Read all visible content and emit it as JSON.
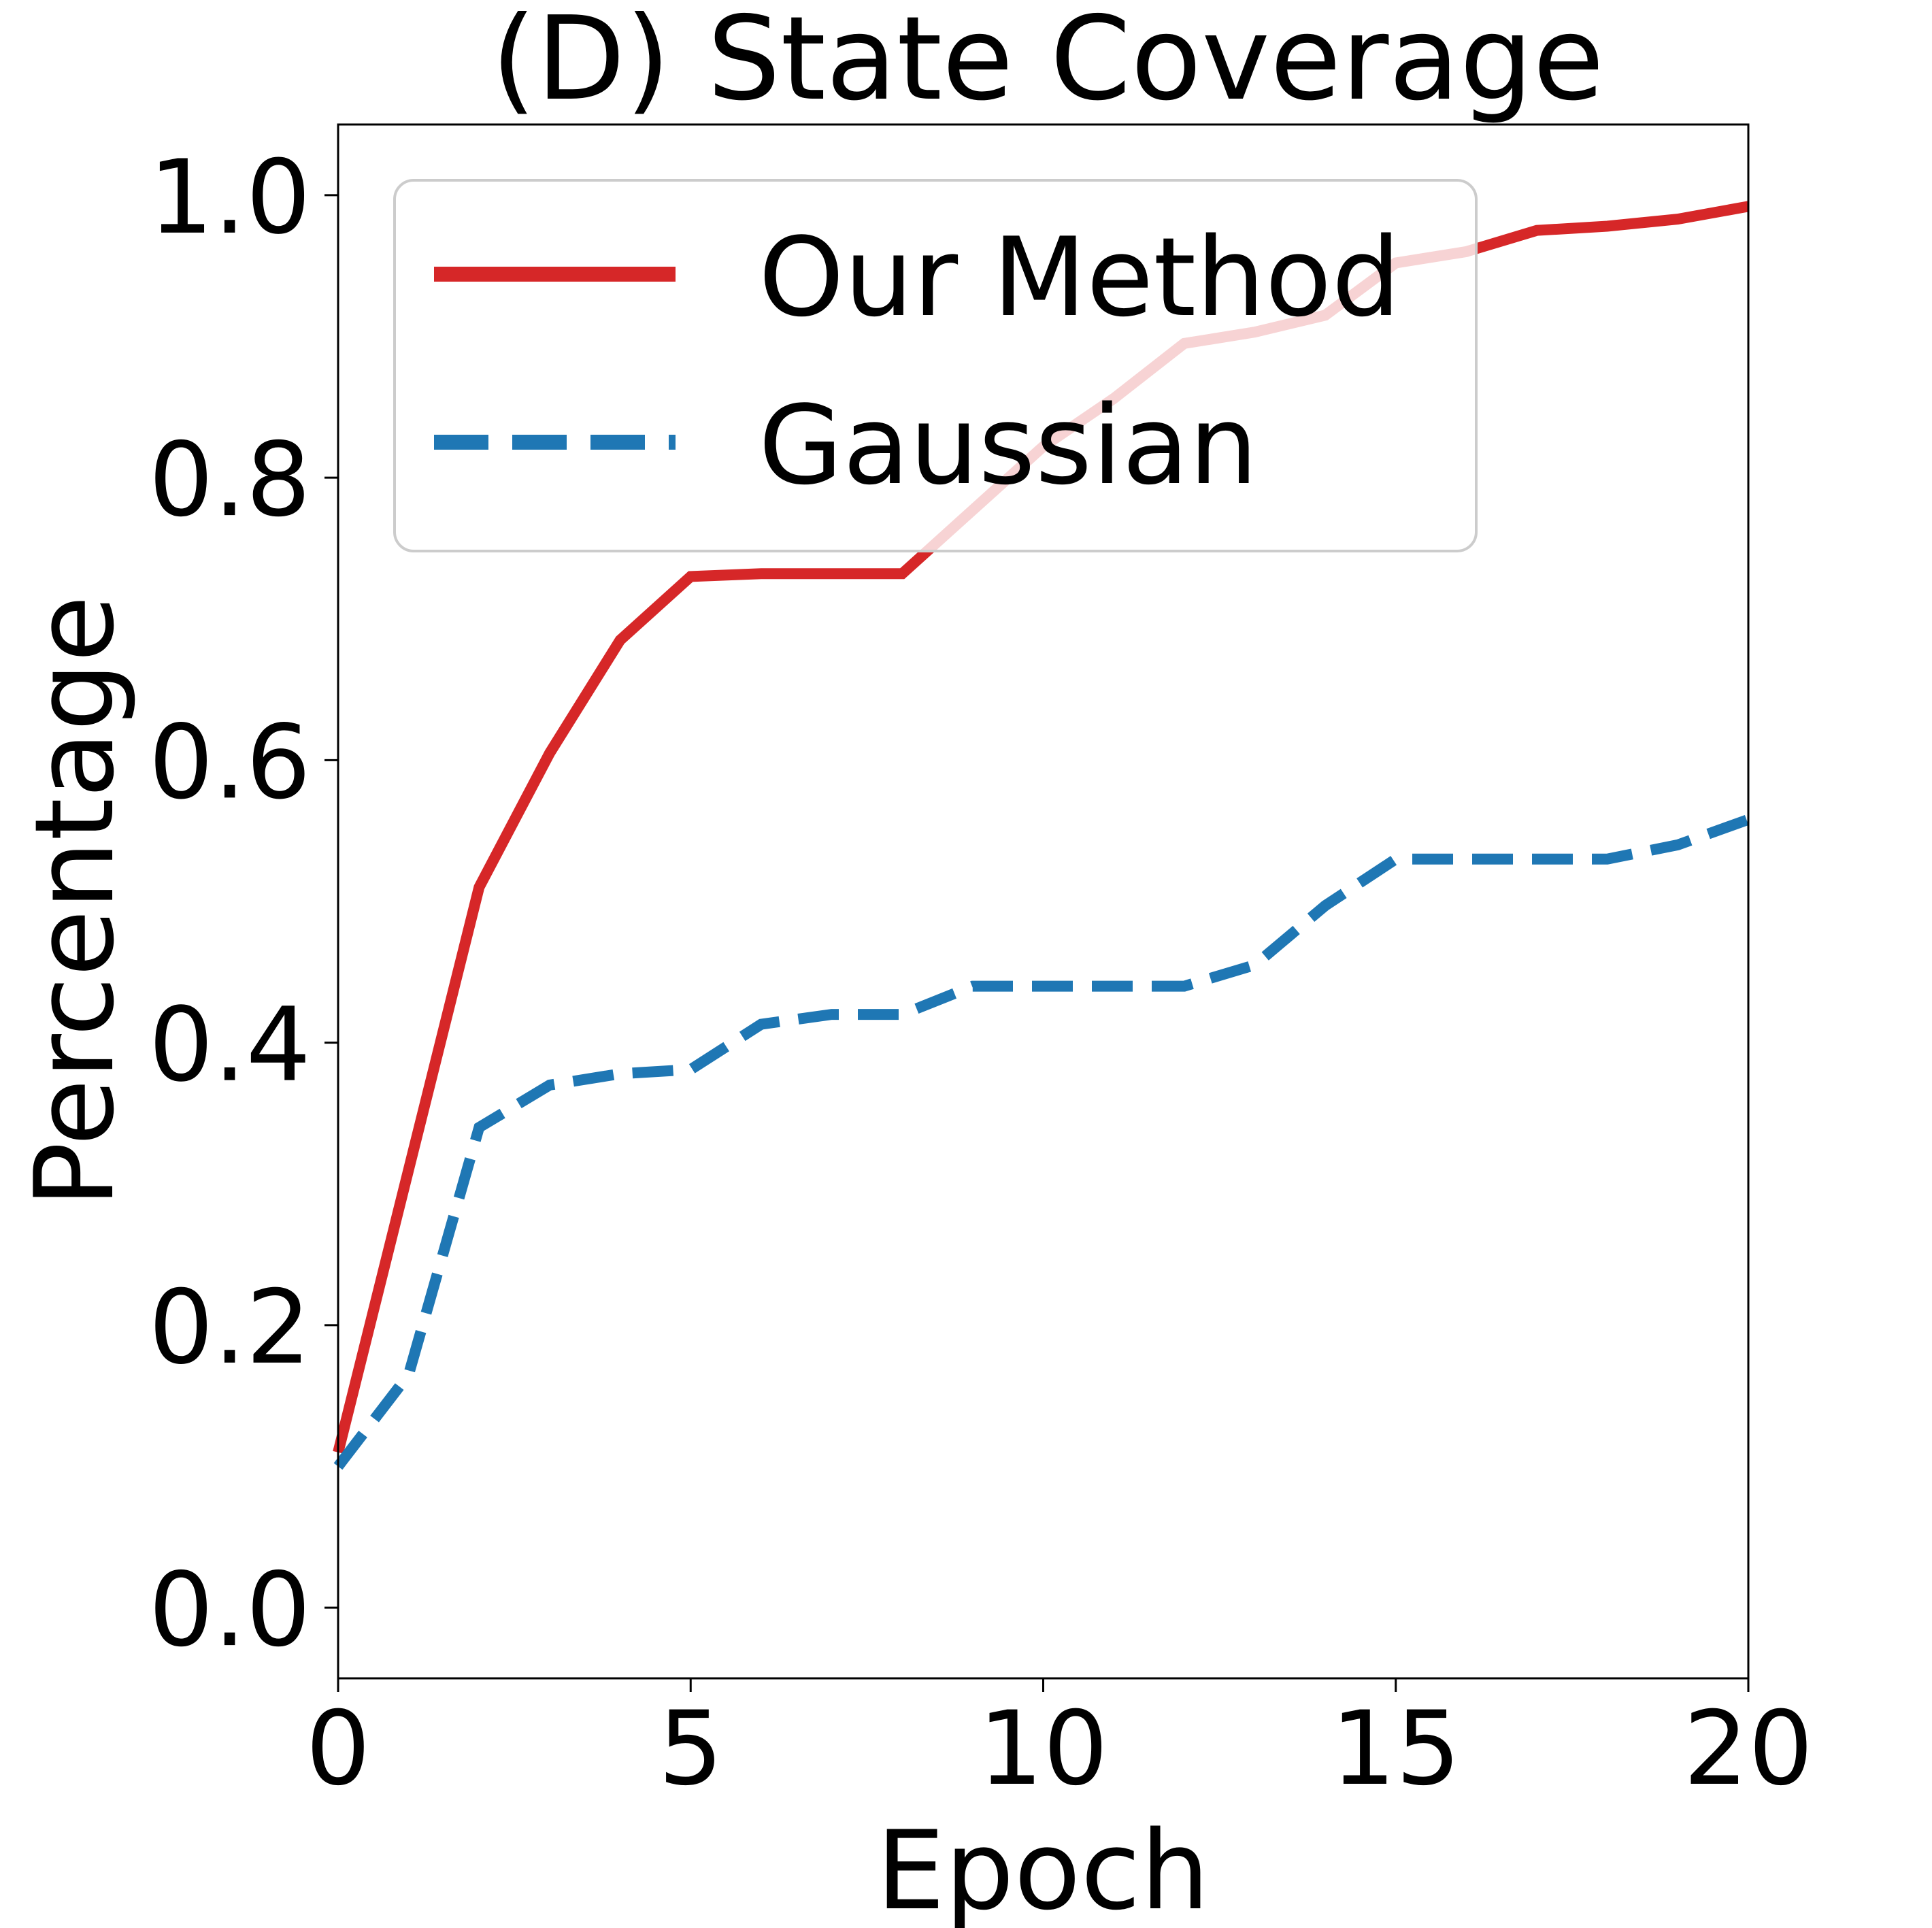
{
  "chart_data": {
    "type": "line",
    "title": "(D) State Coverage",
    "xlabel": "Epoch",
    "ylabel": "Percentage",
    "xlim": [
      0,
      20
    ],
    "ylim": [
      -0.05,
      1.05
    ],
    "xticks": [
      0,
      5,
      10,
      15,
      20
    ],
    "xtick_labels": [
      "0",
      "5",
      "10",
      "15",
      "20"
    ],
    "yticks": [
      0.0,
      0.2,
      0.4,
      0.6,
      0.8,
      1.0
    ],
    "ytick_labels": [
      "0.0",
      "0.2",
      "0.4",
      "0.6",
      "0.8",
      "1.0"
    ],
    "grid": false,
    "legend_position": "upper-left",
    "series": [
      {
        "name": "Our Method",
        "color": "#d62728",
        "style": "solid",
        "x": [
          0,
          1,
          2,
          3,
          4,
          5,
          6,
          7,
          8,
          9,
          10,
          11,
          12,
          13,
          14,
          15,
          16,
          17,
          18,
          19,
          20
        ],
        "values": [
          0.11,
          0.31,
          0.51,
          0.605,
          0.685,
          0.73,
          0.732,
          0.732,
          0.732,
          0.777,
          0.822,
          0.856,
          0.895,
          0.903,
          0.915,
          0.952,
          0.96,
          0.975,
          0.978,
          0.983,
          0.992
        ]
      },
      {
        "name": "Gaussian",
        "color": "#1f77b4",
        "style": "dashed",
        "x": [
          0,
          1,
          2,
          3,
          4,
          5,
          6,
          7,
          8,
          9,
          10,
          11,
          12,
          13,
          14,
          15,
          16,
          17,
          18,
          19,
          20
        ],
        "values": [
          0.1,
          0.165,
          0.34,
          0.37,
          0.378,
          0.381,
          0.413,
          0.42,
          0.42,
          0.44,
          0.44,
          0.44,
          0.44,
          0.455,
          0.497,
          0.53,
          0.53,
          0.53,
          0.53,
          0.54,
          0.558
        ]
      }
    ]
  }
}
